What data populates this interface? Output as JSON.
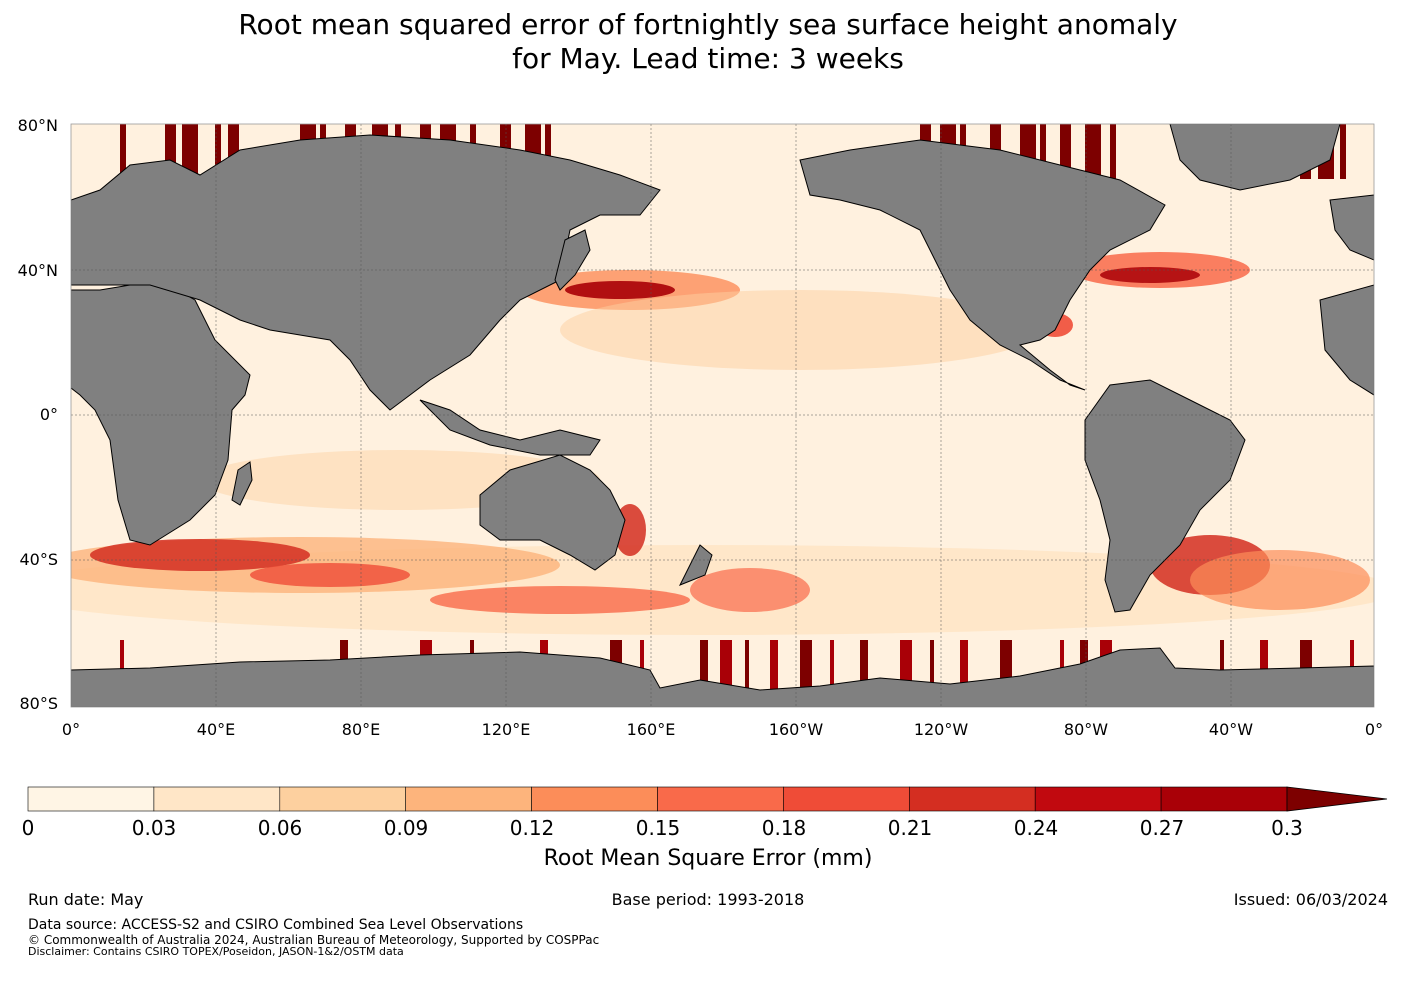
{
  "title": {
    "line1": "Root mean squared error of fortnightly sea surface height anomaly",
    "line2": "for May. Lead time: 3 weeks"
  },
  "map": {
    "lat_labels": [
      "80°N",
      "40°N",
      "0°",
      "40°S",
      "80°S"
    ],
    "lon_labels": [
      "0°",
      "40°E",
      "80°E",
      "120°E",
      "160°E",
      "160°W",
      "120°W",
      "80°W",
      "40°W",
      "0°"
    ],
    "land_color": "#808080"
  },
  "colorbar": {
    "ticks": [
      "0",
      "0.03",
      "0.06",
      "0.09",
      "0.12",
      "0.15",
      "0.18",
      "0.21",
      "0.24",
      "0.27",
      "0.3"
    ],
    "colors": [
      "#fff5e5",
      "#ffe6c7",
      "#fdd09f",
      "#fdb47c",
      "#fc8d59",
      "#f96a4a",
      "#ef4c37",
      "#d42e21",
      "#c1090f",
      "#a90007",
      "#7d0000"
    ],
    "extend_color": "#7d0000",
    "label": "Root Mean Square Error (mm)"
  },
  "footer": {
    "run_date": "Run date: May",
    "base_period": "Base period: 1993-2018",
    "issued": "Issued: 06/03/2024",
    "data_source": "Data source: ACCESS-S2 and CSIRO Combined Sea Level Observations",
    "copyright": "© Commonwealth of Australia 2024, Australian Bureau of Meteorology, Supported by COSPPac",
    "disclaimer": "Disclaimer: Contains CSIRO TOPEX/Poseidon, JASON-1&2/OSTM data"
  }
}
